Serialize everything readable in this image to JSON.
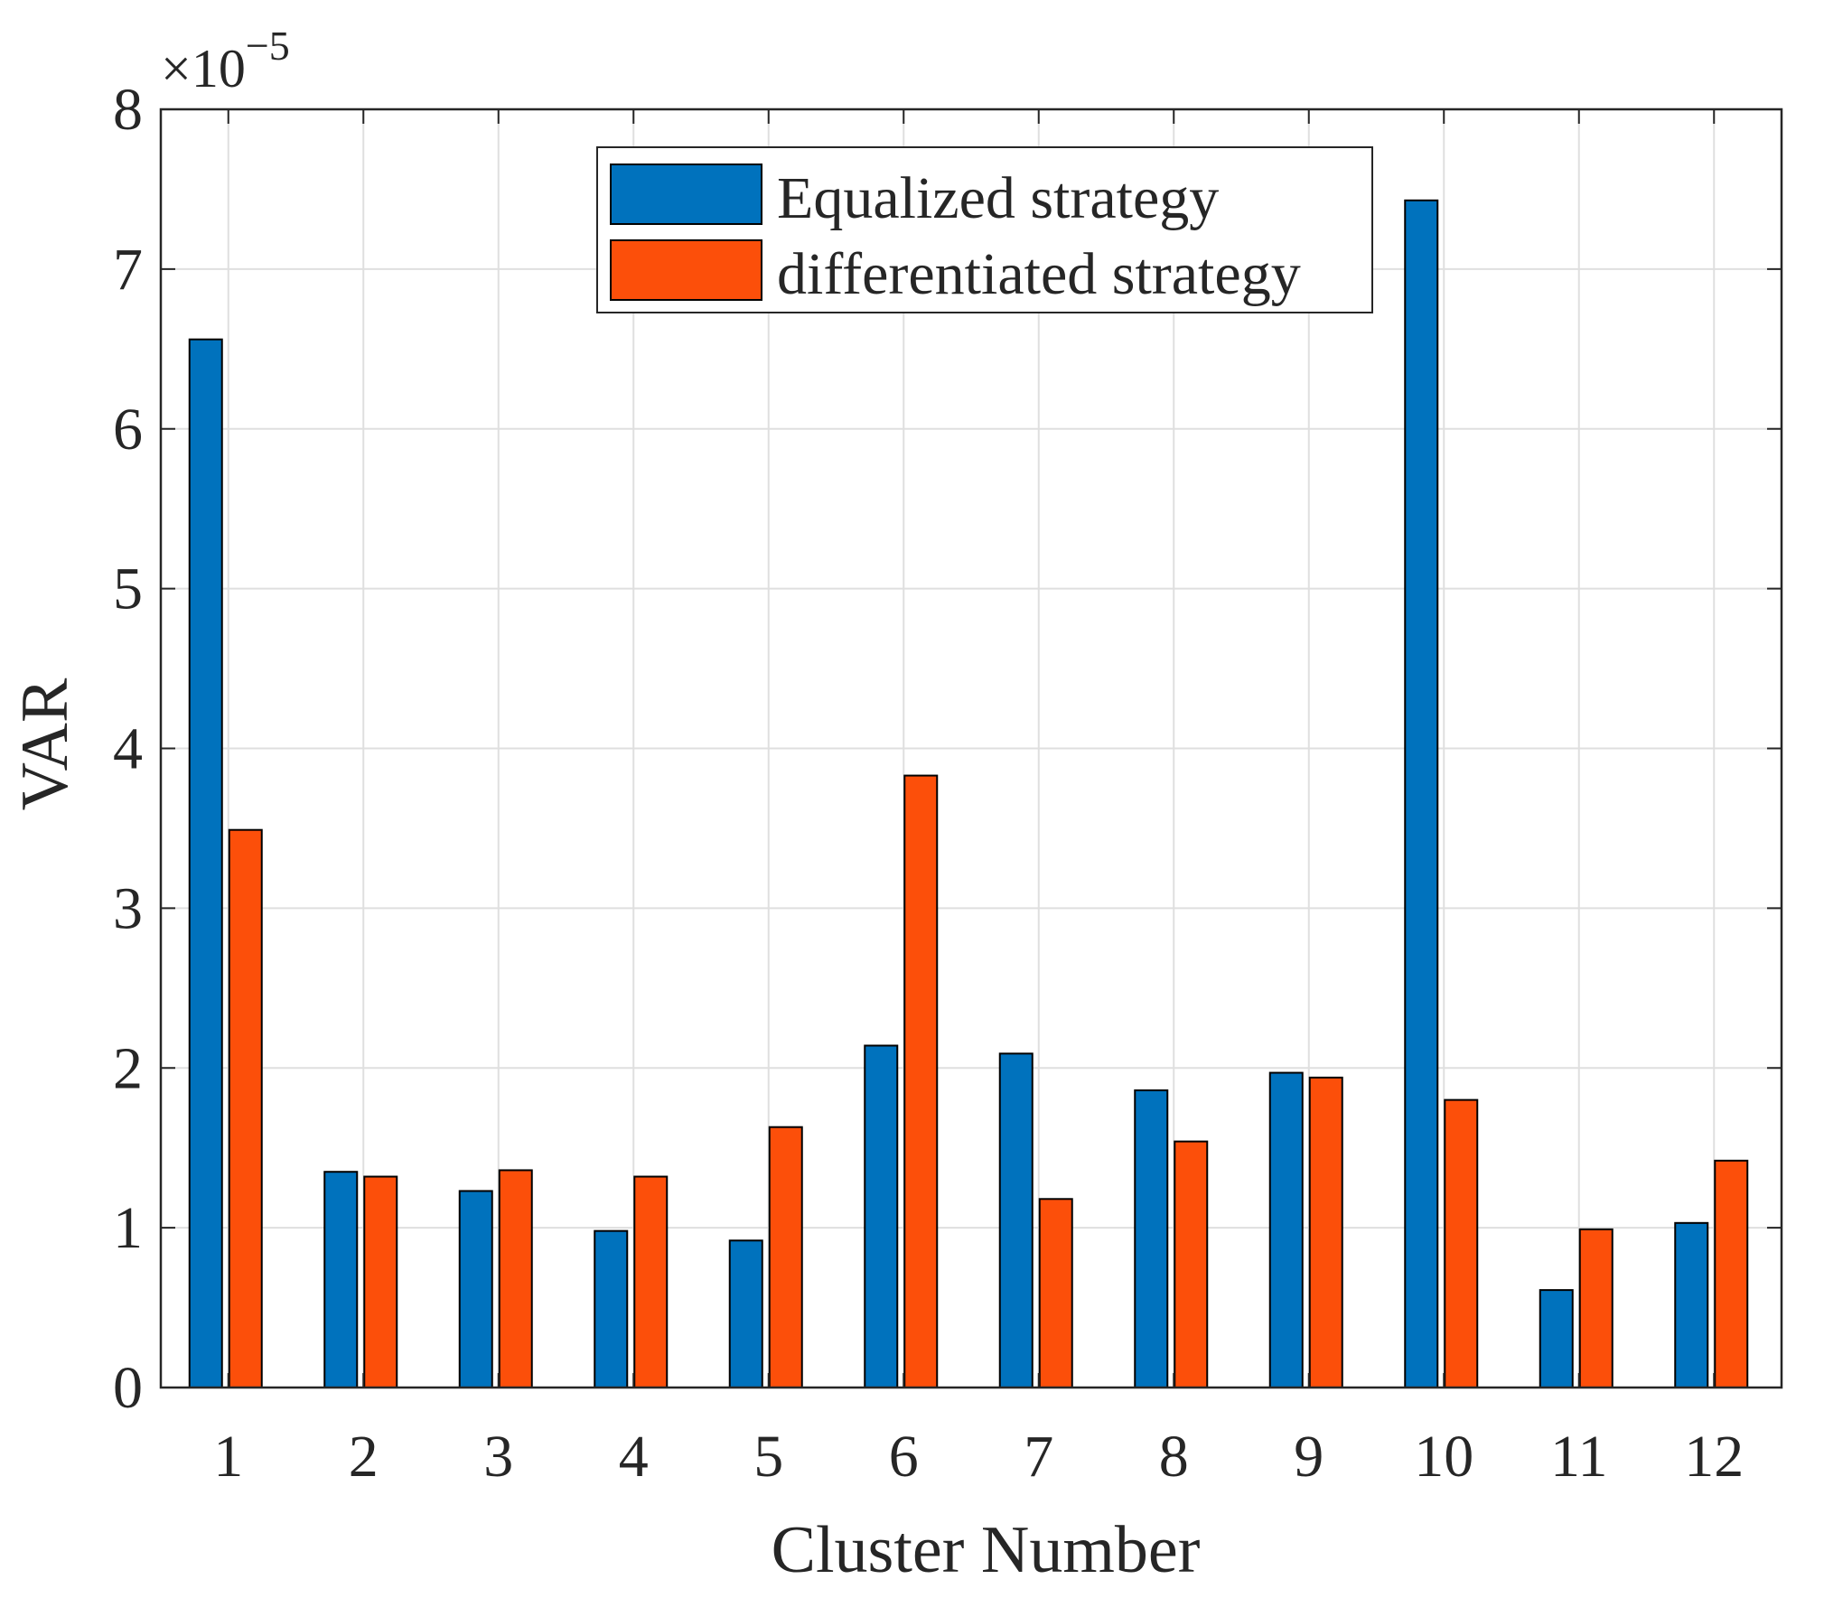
{
  "chart_data": {
    "type": "bar",
    "xlabel": "Cluster Number",
    "ylabel": "VAR",
    "y_exponent_label": "×10",
    "y_exponent_power": "−5",
    "ylim": [
      0,
      8
    ],
    "yticks": [
      "0",
      "1",
      "2",
      "3",
      "4",
      "5",
      "6",
      "7",
      "8"
    ],
    "categories": [
      "1",
      "2",
      "3",
      "4",
      "5",
      "6",
      "7",
      "8",
      "9",
      "10",
      "11",
      "12"
    ],
    "grid": true,
    "legend_position": "top-center",
    "series": [
      {
        "name": "Equalized strategy",
        "color": "#0072BD",
        "values": [
          6.56,
          1.35,
          1.23,
          0.98,
          0.92,
          2.14,
          2.09,
          1.86,
          1.97,
          7.43,
          0.61,
          1.03
        ]
      },
      {
        "name": "differentiated strategy",
        "color": "#FC4F0A",
        "values": [
          3.49,
          1.32,
          1.36,
          1.32,
          1.63,
          3.83,
          1.18,
          1.54,
          1.94,
          1.8,
          0.99,
          1.42
        ]
      }
    ]
  }
}
